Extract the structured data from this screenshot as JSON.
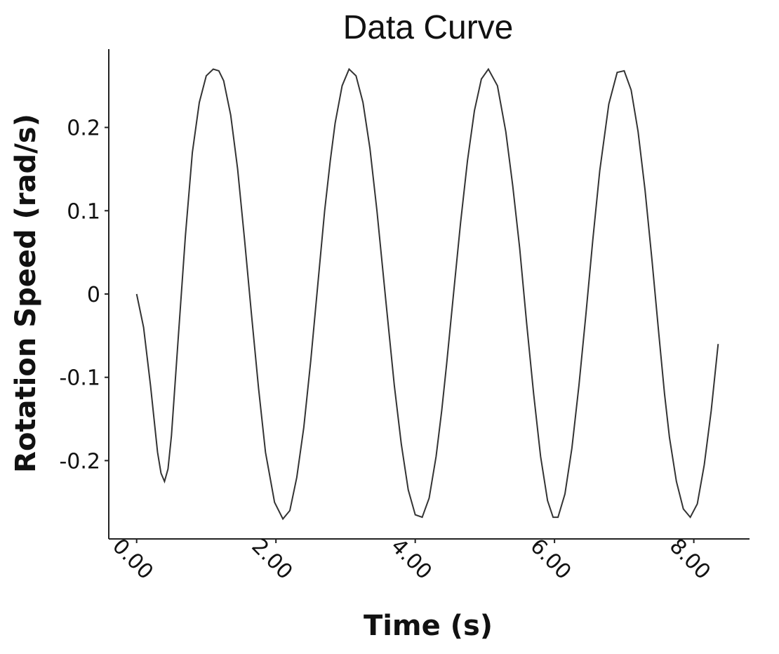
{
  "chart_data": {
    "type": "line",
    "title": "Data Curve",
    "xlabel": "Time (s)",
    "ylabel": "Rotation Speed (rad/s)",
    "xlim": [
      -0.4,
      8.8
    ],
    "ylim": [
      -0.294,
      0.294
    ],
    "xticks": [
      0,
      2,
      4,
      6,
      8
    ],
    "xtick_labels": [
      "0.00",
      "2.00",
      "4.00",
      "6.00",
      "8.00"
    ],
    "yticks": [
      -0.2,
      -0.1,
      0,
      0.1,
      0.2
    ],
    "ytick_labels": [
      "-0.2",
      "-0.1",
      "0",
      "0.1",
      "0.2"
    ],
    "grid": false,
    "legend": "none",
    "color": "#333333",
    "series": [
      {
        "x": [
          0.0,
          0.1,
          0.2,
          0.3,
          0.35,
          0.4,
          0.45,
          0.5,
          0.6,
          0.7,
          0.8,
          0.9,
          1.0,
          1.1,
          1.18,
          1.25,
          1.35,
          1.45,
          1.55,
          1.65,
          1.75,
          1.85,
          1.98,
          2.1,
          2.2,
          2.3,
          2.4,
          2.5,
          2.6,
          2.7,
          2.78,
          2.85,
          2.95,
          3.05,
          3.15,
          3.25,
          3.35,
          3.45,
          3.58,
          3.7,
          3.8,
          3.9,
          4.0,
          4.1,
          4.2,
          4.3,
          4.38,
          4.45,
          4.55,
          4.65,
          4.75,
          4.85,
          4.95,
          5.05,
          5.18,
          5.3,
          5.4,
          5.5,
          5.6,
          5.7,
          5.8,
          5.9,
          5.98,
          6.05,
          6.15,
          6.25,
          6.35,
          6.45,
          6.55,
          6.65,
          6.78,
          6.9,
          7.0,
          7.1,
          7.2,
          7.3,
          7.4,
          7.5,
          7.58,
          7.65,
          7.75,
          7.85,
          7.95,
          8.05,
          8.15,
          8.25,
          8.35
        ],
        "y": [
          0.0,
          -0.04,
          -0.11,
          -0.19,
          -0.215,
          -0.225,
          -0.21,
          -0.17,
          -0.05,
          0.07,
          0.17,
          0.23,
          0.262,
          0.27,
          0.268,
          0.256,
          0.215,
          0.15,
          0.065,
          -0.025,
          -0.113,
          -0.19,
          -0.25,
          -0.27,
          -0.26,
          -0.22,
          -0.16,
          -0.08,
          0.01,
          0.1,
          0.16,
          0.205,
          0.25,
          0.27,
          0.262,
          0.23,
          0.175,
          0.1,
          -0.01,
          -0.11,
          -0.18,
          -0.235,
          -0.265,
          -0.268,
          -0.245,
          -0.195,
          -0.14,
          -0.085,
          0.0,
          0.085,
          0.16,
          0.22,
          0.258,
          0.27,
          0.25,
          0.195,
          0.13,
          0.055,
          -0.035,
          -0.12,
          -0.195,
          -0.248,
          -0.268,
          -0.268,
          -0.24,
          -0.185,
          -0.11,
          -0.025,
          0.065,
          0.148,
          0.228,
          0.266,
          0.268,
          0.245,
          0.195,
          0.125,
          0.04,
          -0.05,
          -0.12,
          -0.172,
          -0.225,
          -0.258,
          -0.268,
          -0.252,
          -0.205,
          -0.14,
          -0.06
        ]
      }
    ]
  }
}
